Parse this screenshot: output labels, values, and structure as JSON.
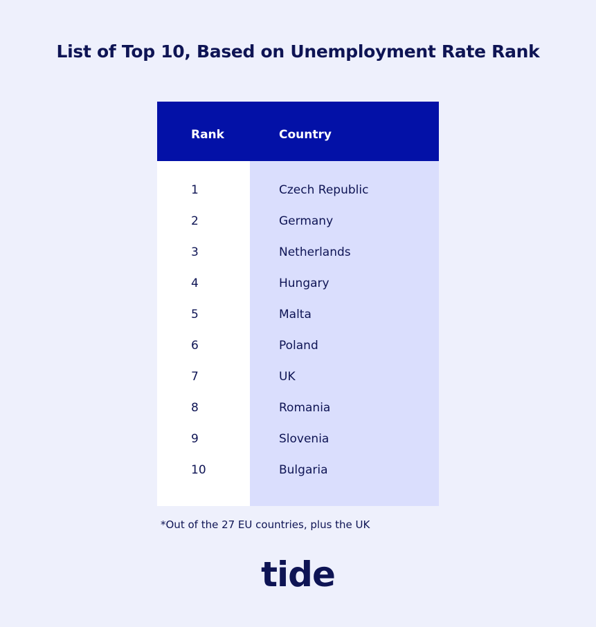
{
  "title": "List of Top 10, Based on Unemployment Rate Rank",
  "table": {
    "headers": {
      "rank": "Rank",
      "country": "Country"
    },
    "rows": [
      {
        "rank": "1",
        "country": "Czech Republic"
      },
      {
        "rank": "2",
        "country": "Germany"
      },
      {
        "rank": "3",
        "country": "Netherlands"
      },
      {
        "rank": "4",
        "country": "Hungary"
      },
      {
        "rank": "5",
        "country": "Malta"
      },
      {
        "rank": "6",
        "country": "Poland"
      },
      {
        "rank": "7",
        "country": "UK"
      },
      {
        "rank": "8",
        "country": "Romania"
      },
      {
        "rank": "9",
        "country": "Slovenia"
      },
      {
        "rank": "10",
        "country": "Bulgaria"
      }
    ]
  },
  "footnote": "*Out of the 27 EU countries, plus the UK",
  "logo": "tide",
  "colors": {
    "background": "#eef0fc",
    "header": "#0311a7",
    "country_column": "#dadefd",
    "text": "#0e1454"
  }
}
